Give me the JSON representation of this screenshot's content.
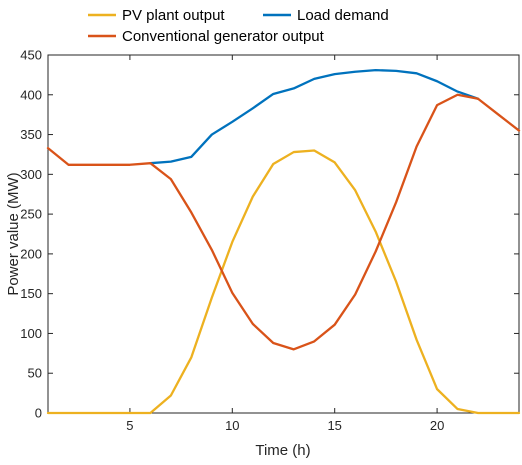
{
  "chart_data": {
    "type": "line",
    "xlabel": "Time (h)",
    "ylabel": "Power value (MW)",
    "xlim": [
      1,
      24
    ],
    "ylim": [
      0,
      450
    ],
    "xticks": [
      5,
      10,
      15,
      20
    ],
    "yticks": [
      0,
      50,
      100,
      150,
      200,
      250,
      300,
      350,
      400,
      450
    ],
    "grid": false,
    "legend_position": "top",
    "x": [
      1,
      2,
      3,
      4,
      5,
      6,
      7,
      8,
      9,
      10,
      11,
      12,
      13,
      14,
      15,
      16,
      17,
      18,
      19,
      20,
      21,
      22,
      23,
      24
    ],
    "series": [
      {
        "name": "PV plant output",
        "color": "#EDB120",
        "values": [
          0,
          0,
          0,
          0,
          0,
          0,
          22,
          70,
          145,
          215,
          272,
          313,
          328,
          330,
          315,
          280,
          228,
          165,
          92,
          30,
          5,
          0,
          0,
          0
        ]
      },
      {
        "name": "Load demand",
        "color": "#0072BD",
        "values": [
          null,
          null,
          null,
          null,
          null,
          314,
          316,
          322,
          350,
          366,
          383,
          401,
          408,
          420,
          426,
          429,
          431,
          430,
          427,
          417,
          404,
          395,
          null,
          null
        ]
      },
      {
        "name": "Conventional generator output",
        "color": "#D95319",
        "values": [
          333,
          312,
          312,
          312,
          312,
          314,
          294,
          252,
          205,
          151,
          112,
          88,
          80,
          90,
          111,
          149,
          203,
          265,
          335,
          387,
          400,
          395,
          375,
          355
        ]
      }
    ]
  }
}
